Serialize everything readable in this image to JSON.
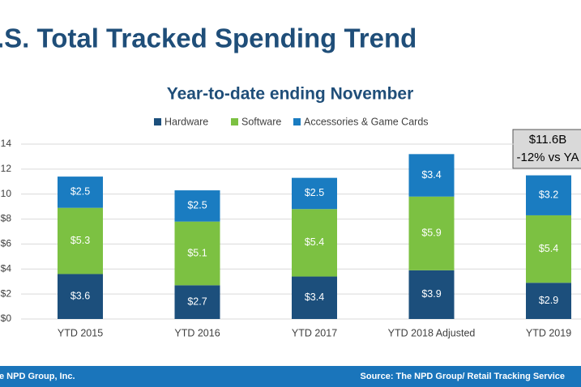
{
  "chart_data": {
    "type": "stacked_bar",
    "title": ".S. Total Tracked Spending Trend",
    "subtitle": "Year-to-date ending November",
    "categories": [
      "YTD 2015",
      "YTD 2016",
      "YTD 2017",
      "YTD 2018 Adjusted",
      "YTD 2019"
    ],
    "series": [
      {
        "name": "Hardware",
        "color": "#1c4f7c",
        "values": [
          3.6,
          2.7,
          3.4,
          3.9,
          2.9
        ],
        "value_labels": [
          "$3.6",
          "$2.7",
          "$3.4",
          "$3.9",
          "$2.9"
        ]
      },
      {
        "name": "Software",
        "color": "#7cc142",
        "values": [
          5.3,
          5.1,
          5.4,
          5.9,
          5.4
        ],
        "value_labels": [
          "$5.3",
          "$5.1",
          "$5.4",
          "$5.9",
          "$5.4"
        ]
      },
      {
        "name": "Accessories & Game Cards",
        "color": "#1a7cc1",
        "values": [
          2.5,
          2.5,
          2.5,
          3.4,
          3.2
        ],
        "value_labels": [
          "$2.5",
          "$2.5",
          "$2.5",
          "$3.4",
          "$3.2"
        ]
      }
    ],
    "ylim": [
      0,
      14
    ],
    "yticks": [
      {
        "value": 0,
        "label": "$0"
      },
      {
        "value": 2,
        "label": "$2"
      },
      {
        "value": 4,
        "label": "$4"
      },
      {
        "value": 6,
        "label": "$6"
      },
      {
        "value": 8,
        "label": "$8"
      },
      10,
      12,
      14
    ],
    "grid": true,
    "annotation": [
      "$11.6B",
      "-12% vs YA"
    ],
    "footer": "e NPD Group, Inc.",
    "source": "Source: The NPD Group/ Retail Tracking Service"
  }
}
